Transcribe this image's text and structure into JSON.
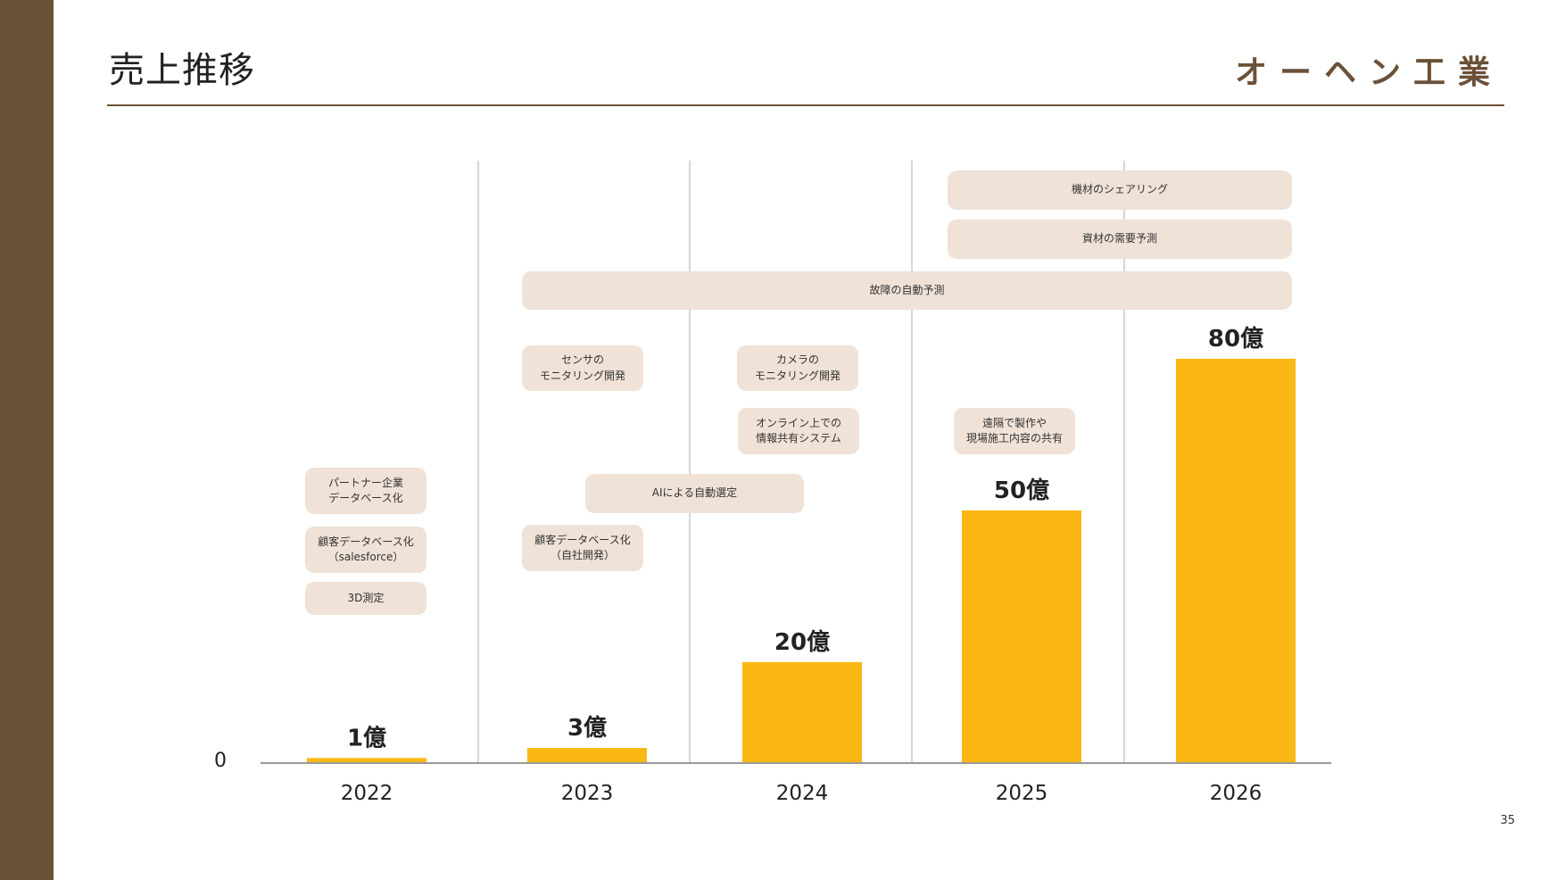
{
  "slide": {
    "title": "売上推移",
    "brand": "オーヘン工業",
    "page_number": "35",
    "accent_color": "#6b5038",
    "bar_color": "#fbb714",
    "tag_color": "#f0e2d7"
  },
  "chart_data": {
    "type": "bar",
    "title": "売上推移",
    "xlabel": "",
    "ylabel": "",
    "categories": [
      "2022",
      "2023",
      "2024",
      "2025",
      "2026"
    ],
    "values": [
      1,
      3,
      20,
      50,
      80
    ],
    "data_labels": [
      "1億",
      "3億",
      "20億",
      "50億",
      "80億"
    ],
    "y_tick_labels": [
      "0"
    ],
    "ylim": [
      0,
      80
    ],
    "grid": false,
    "legend": "none"
  },
  "roadmap": {
    "tags": [
      {
        "name": "tag-equipment-sharing",
        "text": "機材のシェアリング"
      },
      {
        "name": "tag-material-demand",
        "text": "資材の需要予測"
      },
      {
        "name": "tag-failure-prediction",
        "text": "故障の自動予測"
      },
      {
        "name": "tag-sensor-monitoring",
        "text": "センサの\nモニタリング開発"
      },
      {
        "name": "tag-camera-monitoring",
        "text": "カメラの\nモニタリング開発"
      },
      {
        "name": "tag-online-sharing",
        "text": "オンライン上での\n情報共有システム"
      },
      {
        "name": "tag-remote-production",
        "text": "遠隔で製作や\n現場施工内容の共有"
      },
      {
        "name": "tag-partner-db",
        "text": "パートナー企業\nデータベース化"
      },
      {
        "name": "tag-ai-selection",
        "text": "AIによる自動選定"
      },
      {
        "name": "tag-customer-db-salesforce",
        "text": "顧客データベース化\n（salesforce）"
      },
      {
        "name": "tag-customer-db-inhouse",
        "text": "顧客データベース化\n（自社開発）"
      },
      {
        "name": "tag-3d-measure",
        "text": "3D測定"
      }
    ]
  }
}
